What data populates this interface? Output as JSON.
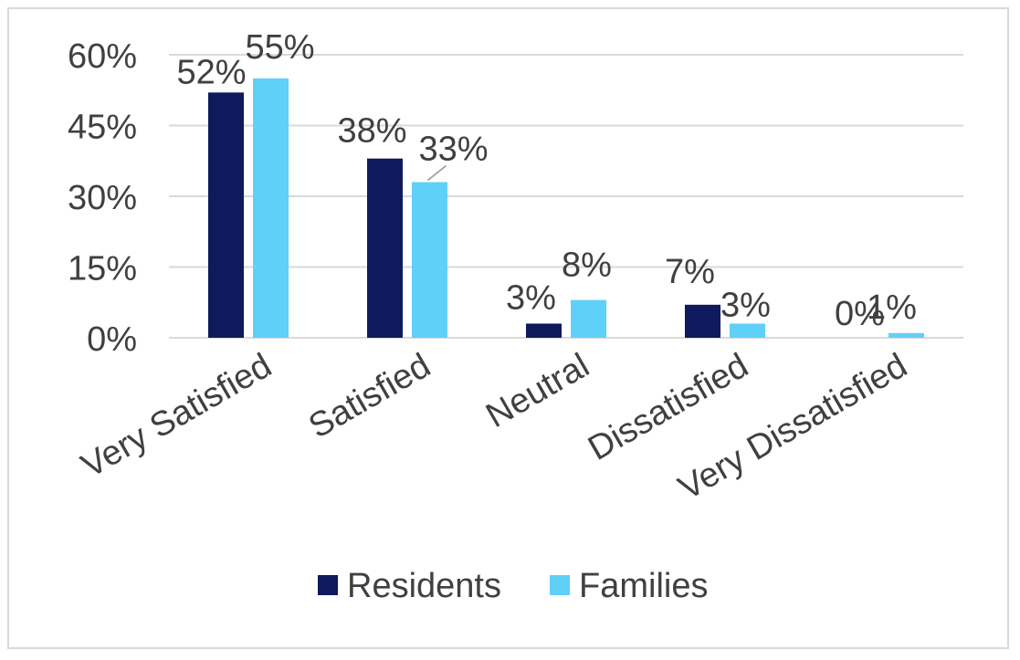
{
  "chart_data": {
    "type": "bar",
    "categories": [
      "Very Satisfied",
      "Satisfied",
      "Neutral",
      "Dissatisfied",
      "Very Dissatisfied"
    ],
    "series": [
      {
        "name": "Residents",
        "values": [
          52,
          38,
          3,
          7,
          0
        ],
        "labels": [
          "52%",
          "38%",
          "3%",
          "7%",
          "0%"
        ],
        "color": "#0e1a5c"
      },
      {
        "name": "Families",
        "values": [
          55,
          33,
          8,
          3,
          1
        ],
        "labels": [
          "55%",
          "33%",
          "8%",
          "3%",
          "1%"
        ],
        "color": "#5fd0f7"
      }
    ],
    "yticks": [
      "0%",
      "15%",
      "30%",
      "45%",
      "60%"
    ],
    "ylim": [
      0,
      60
    ],
    "grid": true,
    "legend": "bottom",
    "colors": {
      "text": "#404040",
      "grid": "#d9d9d9",
      "leader": "#a6a6a6"
    }
  }
}
